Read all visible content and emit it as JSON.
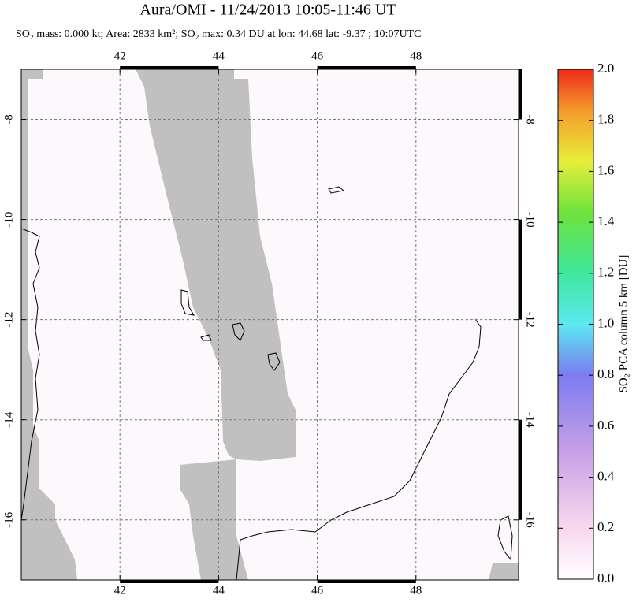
{
  "title": "Aura/OMI - 11/24/2013 10:05-11:46 UT",
  "subtitle": "SO₂ mass: 0.000 kt; Area: 2833 km²; SO₂ max: 0.34 DU at lon: 44.68 lat: -9.37 ; 10:07UTC",
  "map": {
    "lon_range": [
      40,
      50.08
    ],
    "lat_range": [
      -17.2,
      -7
    ],
    "lon_ticks": [
      42,
      44,
      46,
      48
    ],
    "lat_ticks": [
      -8,
      -10,
      -12,
      -14,
      -16
    ]
  },
  "colorbar": {
    "label": "SO₂ PCA column 5 km [DU]",
    "range": [
      0,
      2
    ],
    "ticks": [
      {
        "value": 0,
        "label": "0.0"
      },
      {
        "value": 0.2,
        "label": "0.2"
      },
      {
        "value": 0.4,
        "label": "0.4"
      },
      {
        "value": 0.6,
        "label": "0.6"
      },
      {
        "value": 0.8,
        "label": "0.8"
      },
      {
        "value": 1,
        "label": "1.0"
      },
      {
        "value": 1.2,
        "label": "1.2"
      },
      {
        "value": 1.4,
        "label": "1.4"
      },
      {
        "value": 1.6,
        "label": "1.6"
      },
      {
        "value": 1.8,
        "label": "1.8"
      },
      {
        "value": 2,
        "label": "2.0"
      }
    ]
  }
}
